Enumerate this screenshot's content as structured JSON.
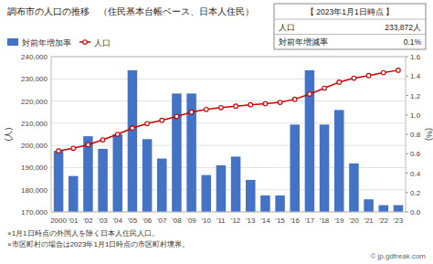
{
  "chart_data": {
    "type": "bar",
    "title": "調布市の人口の推移　（住民基本台帳ベース、日本人住民）",
    "categories": [
      "2000",
      "'01",
      "'02",
      "'03",
      "'04",
      "'05",
      "'06",
      "'07",
      "'08",
      "'09",
      "'10",
      "'11",
      "'12",
      "'13",
      "'14",
      "'15",
      "'16",
      "'17",
      "'18",
      "'19",
      "'20",
      "'21",
      "'22",
      "'23"
    ],
    "series": [
      {
        "name": "対前年増加率",
        "type": "bar",
        "axis": "y2",
        "color": "#4472C4",
        "values": [
          0.63,
          0.37,
          0.78,
          0.65,
          0.8,
          1.46,
          0.75,
          0.55,
          1.22,
          1.22,
          0.38,
          0.48,
          0.57,
          0.33,
          0.17,
          0.17,
          0.9,
          1.46,
          0.9,
          1.05,
          0.5,
          0.13,
          0.07,
          0.07
        ]
      },
      {
        "name": "人口",
        "type": "line",
        "color": "#CC0000",
        "marker": "circle",
        "values": [
          197500,
          198700,
          200300,
          202500,
          205000,
          207800,
          209800,
          211300,
          213000,
          215000,
          216200,
          217000,
          217700,
          218300,
          218800,
          219400,
          220800,
          223100,
          225800,
          228500,
          230300,
          231500,
          232800,
          233872
        ]
      }
    ],
    "ylabel": "(人)",
    "y2label": "(%)",
    "ylim": [
      170000,
      240000
    ],
    "yticks": [
      {
        "value": 170000,
        "label": "170,000"
      },
      {
        "value": 180000,
        "label": "180,000"
      },
      {
        "value": 190000,
        "label": "190,000"
      },
      {
        "value": 200000,
        "label": "200,000"
      },
      {
        "value": 210000,
        "label": "210,000"
      },
      {
        "value": 220000,
        "label": "220,000"
      },
      {
        "value": 230000,
        "label": "230,000"
      },
      {
        "value": 240000,
        "label": "240,000"
      }
    ],
    "y2lim": [
      0.0,
      1.6
    ],
    "y2ticks": [
      {
        "value": 0.0,
        "label": "0.0"
      },
      {
        "value": 0.2,
        "label": "0.2"
      },
      {
        "value": 0.4,
        "label": "0.4"
      },
      {
        "value": 0.6,
        "label": "0.6"
      },
      {
        "value": 0.8,
        "label": "0.8"
      },
      {
        "value": 1.0,
        "label": "1.0"
      },
      {
        "value": 1.2,
        "label": "1.2"
      },
      {
        "value": 1.4,
        "label": "1.4"
      },
      {
        "value": 1.6,
        "label": "1.6"
      }
    ],
    "grid": true,
    "legend": "upper left",
    "annotations": [
      "【 2023年1月1日時点 】",
      "人口",
      "233,872人",
      "対前年増減率",
      "0.1%",
      "×1月1日時点の外国人を除く日本人住民人口。",
      "×市区町村の場合は2023年1月1日時点の市区町村境界。",
      "© jp.gdfreak.com"
    ]
  }
}
